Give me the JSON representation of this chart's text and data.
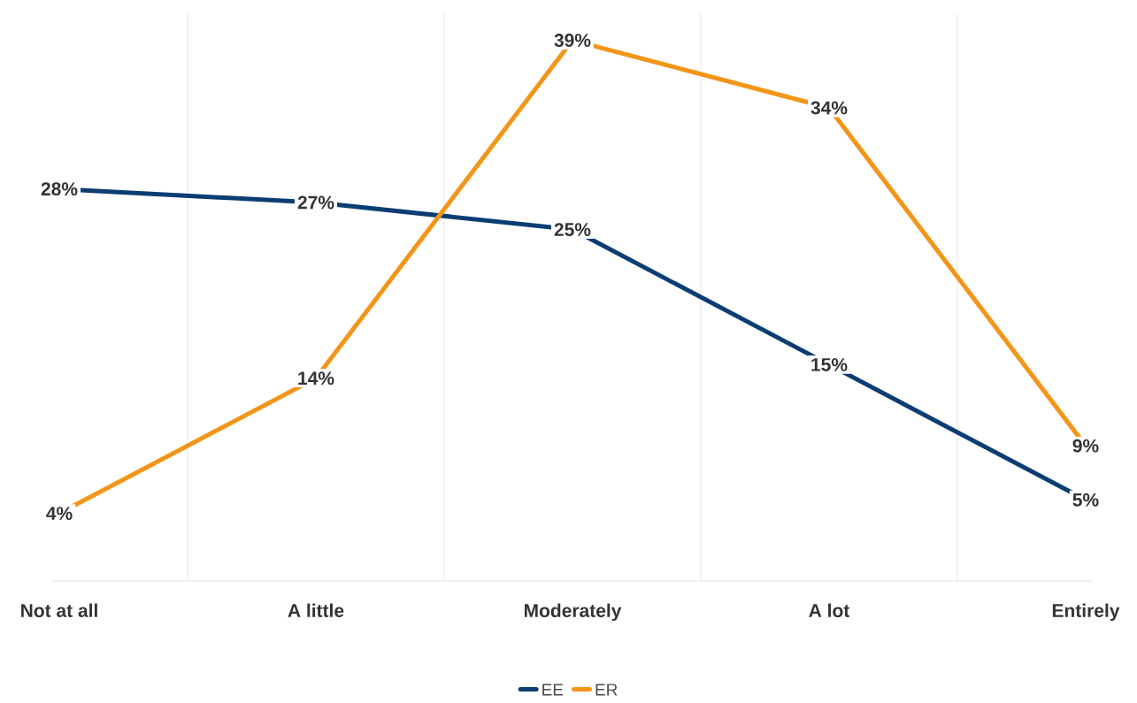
{
  "chart_data": {
    "type": "line",
    "categories": [
      "Not at all",
      "A little",
      "Moderately",
      "A lot",
      "Entirely"
    ],
    "series": [
      {
        "name": "EE",
        "color": "#0b3d73",
        "values": [
          28,
          27,
          25,
          15,
          5
        ],
        "value_labels": [
          "28%",
          "27%",
          "25%",
          "15%",
          "5%"
        ]
      },
      {
        "name": "ER",
        "color": "#f39519",
        "values": [
          4,
          14,
          39,
          34,
          9
        ],
        "value_labels": [
          "4%",
          "14%",
          "39%",
          "34%",
          "9%"
        ]
      }
    ],
    "ylim": [
      -1,
      41
    ],
    "grid": "x",
    "legend": "bottom",
    "marker": "none",
    "line_style": "solid"
  }
}
